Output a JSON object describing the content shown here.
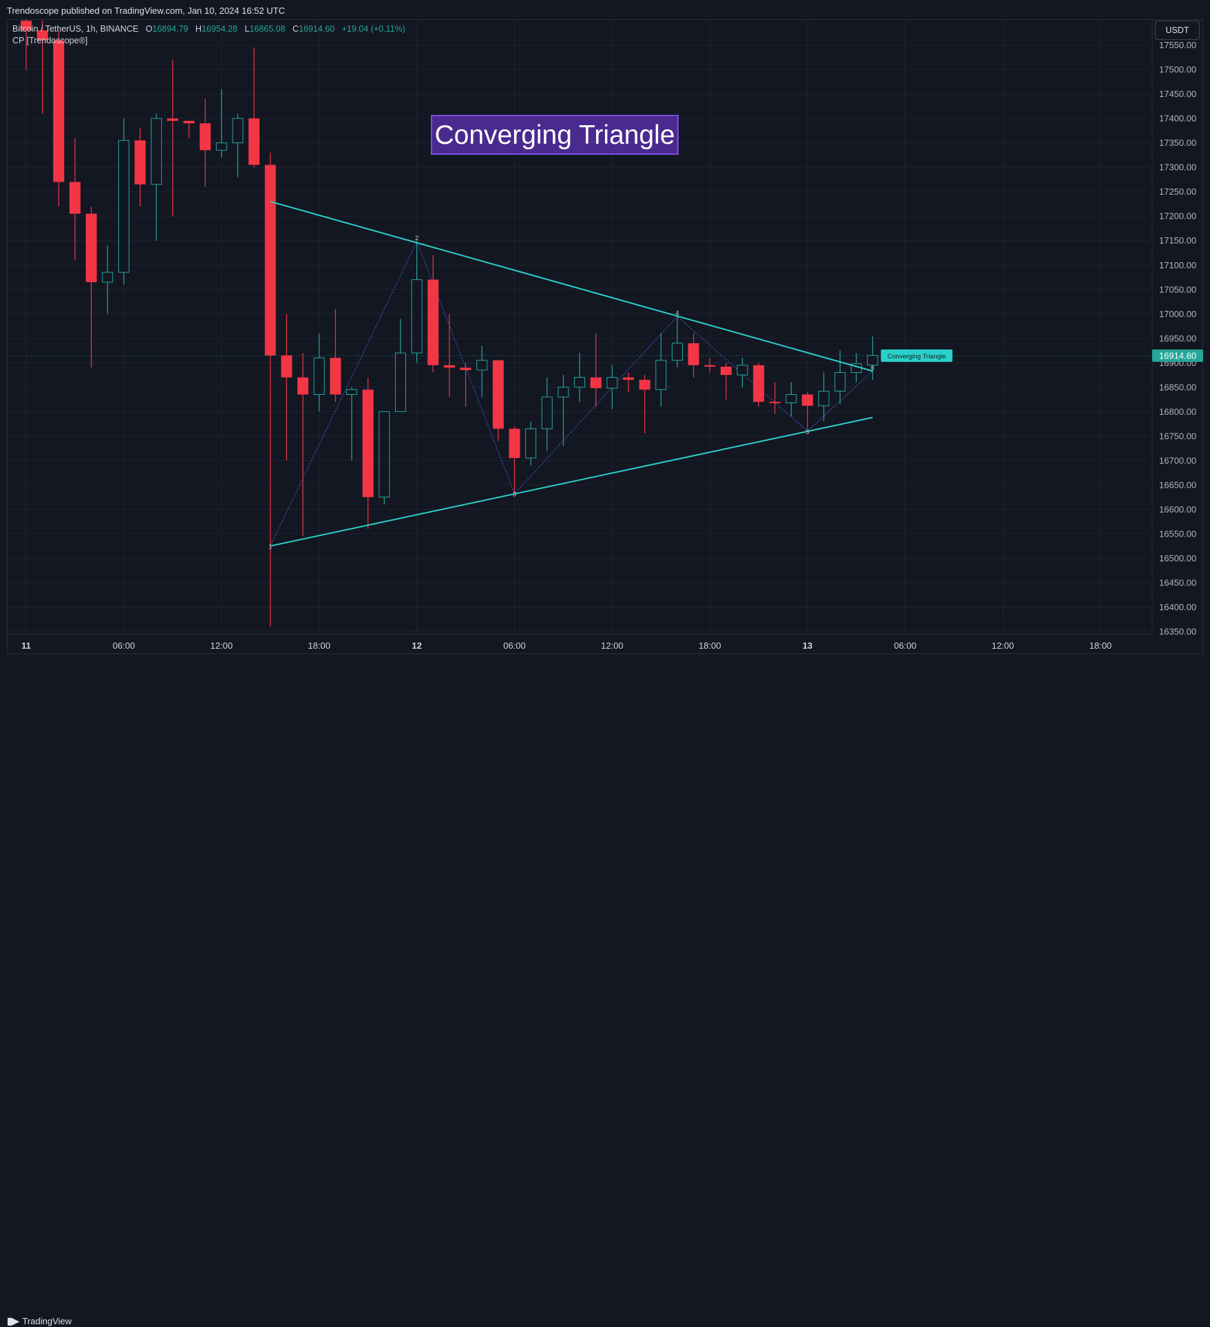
{
  "header": {
    "publish_text": "Trendoscope published on TradingView.com, Jan 10, 2024 16:52 UTC"
  },
  "legend": {
    "symbol": "Bitcoin / TetherUS, 1h, BINANCE",
    "o_label": "O",
    "o_value": "16894.79",
    "h_label": "H",
    "h_value": "16954.28",
    "l_label": "L",
    "l_value": "16865.08",
    "c_label": "C",
    "c_value": "16914.60",
    "change": "+19.04 (+0.11%)",
    "indicator": "CP [Trendoscope®]"
  },
  "currency_button": "USDT",
  "footer": {
    "logo": "𝟏𝟕",
    "brand": "TradingView"
  },
  "colors": {
    "background": "#131722",
    "up": "#26a69a",
    "down": "#f23645",
    "pattern": "#2ad0c9",
    "zigzag": "#3f51b5",
    "title_bg": "#4a2a8e"
  },
  "chart_data": {
    "type": "candlestick",
    "title_label": "Converging Triangle",
    "pattern_tag": "Converging Triangle",
    "last_price": "16914.60",
    "y_axis": {
      "min": 16330,
      "max": 17575,
      "ticks": [
        "16350.00",
        "16400.00",
        "16450.00",
        "16500.00",
        "16550.00",
        "16600.00",
        "16650.00",
        "16700.00",
        "16750.00",
        "16800.00",
        "16850.00",
        "16900.00",
        "16950.00",
        "17000.00",
        "17050.00",
        "17100.00",
        "17150.00",
        "17200.00",
        "17250.00",
        "17300.00",
        "17350.00",
        "17400.00",
        "17450.00",
        "17500.00",
        "17550.00"
      ]
    },
    "x_axis": {
      "ticks": [
        {
          "label": "11",
          "bar": 0,
          "bold": true
        },
        {
          "label": "06:00",
          "bar": 6
        },
        {
          "label": "12:00",
          "bar": 12
        },
        {
          "label": "18:00",
          "bar": 18
        },
        {
          "label": "12",
          "bar": 24,
          "bold": true
        },
        {
          "label": "06:00",
          "bar": 30
        },
        {
          "label": "12:00",
          "bar": 36
        },
        {
          "label": "18:00",
          "bar": 42
        },
        {
          "label": "13",
          "bar": 48,
          "bold": true
        },
        {
          "label": "06:00",
          "bar": 54
        },
        {
          "label": "12:00",
          "bar": 60
        },
        {
          "label": "18:00",
          "bar": 66
        }
      ]
    },
    "candles": [
      {
        "o": 17600,
        "h": 17620,
        "l": 17500,
        "c": 17580
      },
      {
        "o": 17580,
        "h": 17600,
        "l": 17410,
        "c": 17560
      },
      {
        "o": 17560,
        "h": 17580,
        "l": 17220,
        "c": 17270
      },
      {
        "o": 17270,
        "h": 17360,
        "l": 17110,
        "c": 17205
      },
      {
        "o": 17205,
        "h": 17220,
        "l": 16890,
        "c": 17065
      },
      {
        "o": 17065,
        "h": 17140,
        "l": 17000,
        "c": 17085
      },
      {
        "o": 17085,
        "h": 17400,
        "l": 17060,
        "c": 17355
      },
      {
        "o": 17355,
        "h": 17380,
        "l": 17220,
        "c": 17265
      },
      {
        "o": 17265,
        "h": 17410,
        "l": 17150,
        "c": 17400
      },
      {
        "o": 17400,
        "h": 17520,
        "l": 17200,
        "c": 17395
      },
      {
        "o": 17395,
        "h": 17395,
        "l": 17360,
        "c": 17390
      },
      {
        "o": 17390,
        "h": 17440,
        "l": 17260,
        "c": 17335
      },
      {
        "o": 17335,
        "h": 17460,
        "l": 17320,
        "c": 17350
      },
      {
        "o": 17350,
        "h": 17410,
        "l": 17280,
        "c": 17400
      },
      {
        "o": 17400,
        "h": 17545,
        "l": 17300,
        "c": 17305
      },
      {
        "o": 17305,
        "h": 17330,
        "l": 16360,
        "c": 16915
      },
      {
        "o": 16915,
        "h": 17000,
        "l": 16700,
        "c": 16870
      },
      {
        "o": 16870,
        "h": 16920,
        "l": 16545,
        "c": 16835
      },
      {
        "o": 16835,
        "h": 16960,
        "l": 16800,
        "c": 16910
      },
      {
        "o": 16910,
        "h": 17010,
        "l": 16820,
        "c": 16835
      },
      {
        "o": 16835,
        "h": 16850,
        "l": 16700,
        "c": 16845
      },
      {
        "o": 16845,
        "h": 16870,
        "l": 16560,
        "c": 16625
      },
      {
        "o": 16625,
        "h": 16800,
        "l": 16610,
        "c": 16800
      },
      {
        "o": 16800,
        "h": 16990,
        "l": 16805,
        "c": 16920
      },
      {
        "o": 16920,
        "h": 17150,
        "l": 16900,
        "c": 17070
      },
      {
        "o": 17070,
        "h": 17120,
        "l": 16880,
        "c": 16895
      },
      {
        "o": 16895,
        "h": 17000,
        "l": 16830,
        "c": 16890
      },
      {
        "o": 16890,
        "h": 16900,
        "l": 16810,
        "c": 16885
      },
      {
        "o": 16885,
        "h": 16935,
        "l": 16830,
        "c": 16905
      },
      {
        "o": 16905,
        "h": 16905,
        "l": 16740,
        "c": 16765
      },
      {
        "o": 16765,
        "h": 16770,
        "l": 16630,
        "c": 16705
      },
      {
        "o": 16705,
        "h": 16780,
        "l": 16690,
        "c": 16765
      },
      {
        "o": 16765,
        "h": 16870,
        "l": 16720,
        "c": 16830
      },
      {
        "o": 16830,
        "h": 16875,
        "l": 16730,
        "c": 16850
      },
      {
        "o": 16850,
        "h": 16920,
        "l": 16820,
        "c": 16870
      },
      {
        "o": 16870,
        "h": 16960,
        "l": 16810,
        "c": 16848
      },
      {
        "o": 16848,
        "h": 16895,
        "l": 16805,
        "c": 16870
      },
      {
        "o": 16870,
        "h": 16880,
        "l": 16840,
        "c": 16865
      },
      {
        "o": 16865,
        "h": 16875,
        "l": 16755,
        "c": 16845
      },
      {
        "o": 16845,
        "h": 16960,
        "l": 16810,
        "c": 16905
      },
      {
        "o": 16905,
        "h": 17000,
        "l": 16890,
        "c": 16940
      },
      {
        "o": 16940,
        "h": 16960,
        "l": 16870,
        "c": 16895
      },
      {
        "o": 16895,
        "h": 16910,
        "l": 16880,
        "c": 16892
      },
      {
        "o": 16892,
        "h": 16900,
        "l": 16825,
        "c": 16875
      },
      {
        "o": 16875,
        "h": 16910,
        "l": 16850,
        "c": 16895
      },
      {
        "o": 16895,
        "h": 16900,
        "l": 16810,
        "c": 16820
      },
      {
        "o": 16820,
        "h": 16860,
        "l": 16795,
        "c": 16818
      },
      {
        "o": 16818,
        "h": 16860,
        "l": 16790,
        "c": 16835
      },
      {
        "o": 16835,
        "h": 16840,
        "l": 16765,
        "c": 16812
      },
      {
        "o": 16812,
        "h": 16880,
        "l": 16780,
        "c": 16842
      },
      {
        "o": 16842,
        "h": 16925,
        "l": 16815,
        "c": 16880
      },
      {
        "o": 16880,
        "h": 16920,
        "l": 16860,
        "c": 16898
      },
      {
        "o": 16895,
        "h": 16954,
        "l": 16865,
        "c": 16915
      }
    ],
    "pivots": [
      {
        "label": "1",
        "bar": 15,
        "price": 16525
      },
      {
        "label": "2",
        "bar": 24,
        "price": 17148
      },
      {
        "label": "3",
        "bar": 30,
        "price": 16632
      },
      {
        "label": "4",
        "bar": 40,
        "price": 16995
      },
      {
        "label": "5",
        "bar": 48,
        "price": 16760
      },
      {
        "label": "6",
        "bar": 52,
        "price": 16883
      }
    ],
    "trendlines": [
      {
        "role": "upper",
        "start": {
          "bar": 15,
          "price": 17230
        },
        "end": {
          "bar": 52,
          "price": 16883
        }
      },
      {
        "role": "lower",
        "start": {
          "bar": 15,
          "price": 16525
        },
        "end": {
          "bar": 52,
          "price": 16788
        }
      }
    ]
  }
}
